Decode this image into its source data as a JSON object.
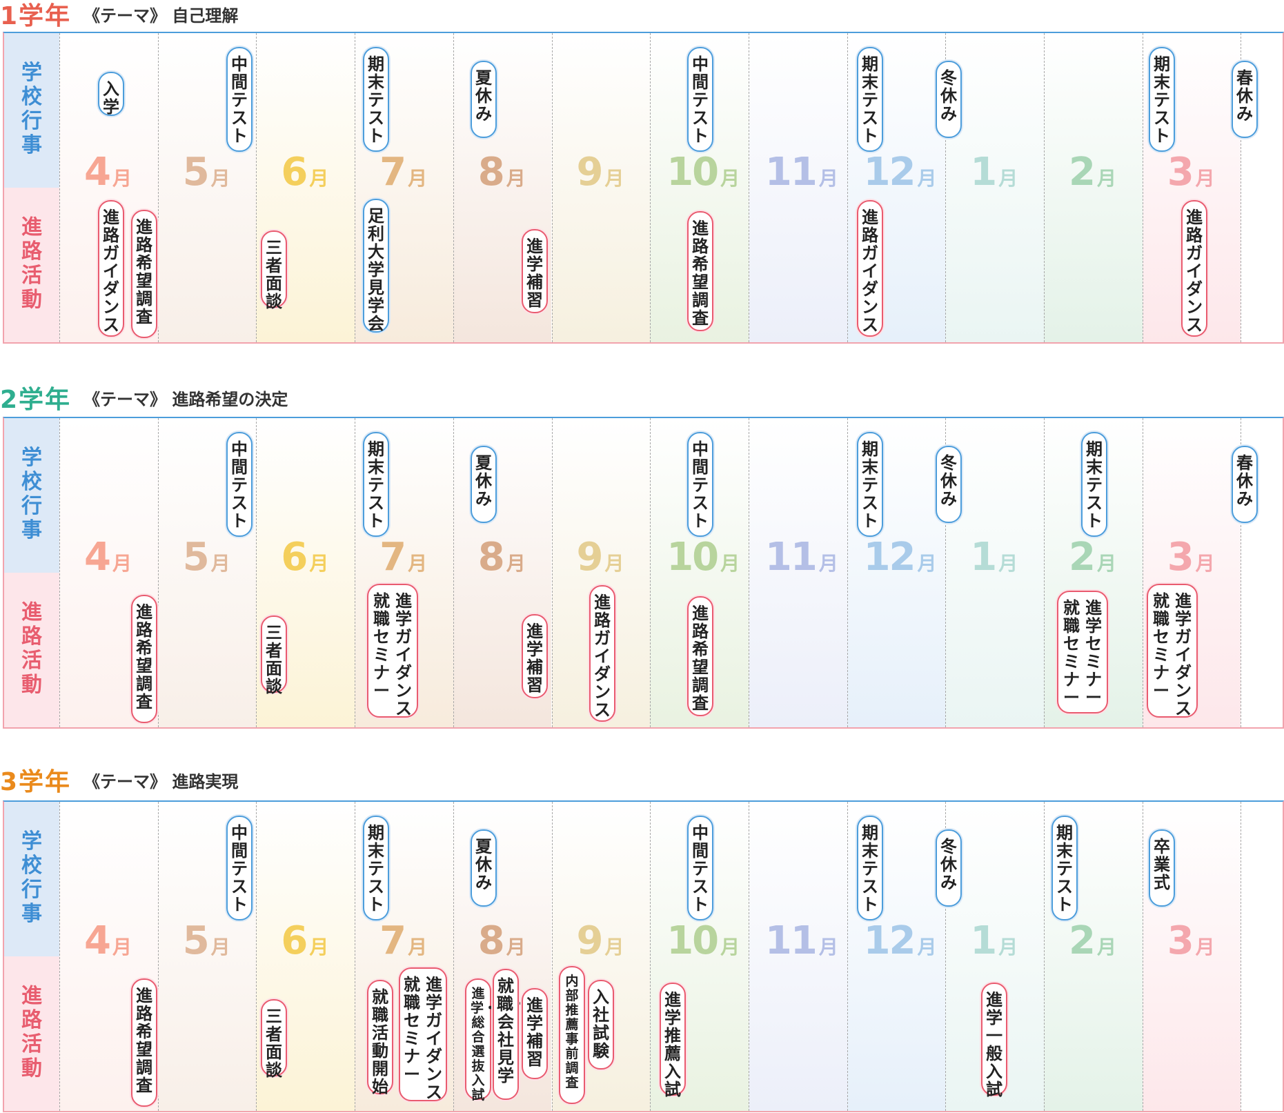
{
  "labels": {
    "school": "学校行事",
    "career": "進路活動"
  },
  "months": [
    {
      "num": "4",
      "unit": "月",
      "color": "#f7a693",
      "bg": "#fdf1ee"
    },
    {
      "num": "5",
      "unit": "月",
      "color": "#e0b99c",
      "bg": "#f8efe8"
    },
    {
      "num": "6",
      "unit": "月",
      "color": "#f4cf5c",
      "bg": "#fcf3d6"
    },
    {
      "num": "7",
      "unit": "月",
      "color": "#e3b681",
      "bg": "#f7ebdc"
    },
    {
      "num": "8",
      "unit": "月",
      "color": "#d9ab8a",
      "bg": "#f4e6dd"
    },
    {
      "num": "9",
      "unit": "月",
      "color": "#e5cf95",
      "bg": "#f6f0df"
    },
    {
      "num": "10",
      "unit": "月",
      "color": "#b8d49d",
      "bg": "#e9f2e1"
    },
    {
      "num": "11",
      "unit": "月",
      "color": "#b4bfe6",
      "bg": "#eceff9"
    },
    {
      "num": "12",
      "unit": "月",
      "color": "#a9cbea",
      "bg": "#e6f0fa"
    },
    {
      "num": "1",
      "unit": "月",
      "color": "#b5dcd6",
      "bg": "#eaf5f3"
    },
    {
      "num": "2",
      "unit": "月",
      "color": "#a9d6b6",
      "bg": "#e4f2e8"
    },
    {
      "num": "3",
      "unit": "月",
      "color": "#f4a7ad",
      "bg": "#fde7ea"
    }
  ],
  "years": [
    {
      "title": "1学年",
      "theme": "《テーマ》 自己理解",
      "events": [
        {
          "id": "y1-school-1",
          "type": "b",
          "cols": [
            "入学"
          ]
        },
        {
          "id": "y1-school-2",
          "type": "b",
          "cols": [
            "中間テスト"
          ]
        },
        {
          "id": "y1-school-3",
          "type": "b",
          "cols": [
            "期末テスト"
          ]
        },
        {
          "id": "y1-school-4",
          "type": "b",
          "cols": [
            "夏休み"
          ]
        },
        {
          "id": "y1-school-5",
          "type": "b",
          "cols": [
            "中間テスト"
          ]
        },
        {
          "id": "y1-school-6",
          "type": "b",
          "cols": [
            "期末テスト"
          ]
        },
        {
          "id": "y1-school-7",
          "type": "b",
          "cols": [
            "冬休み"
          ]
        },
        {
          "id": "y1-school-8",
          "type": "b",
          "cols": [
            "期末テスト"
          ]
        },
        {
          "id": "y1-school-9",
          "type": "b",
          "cols": [
            "春休み"
          ]
        },
        {
          "id": "y1-career-1",
          "type": "p",
          "cols": [
            "進路ガイダンス"
          ]
        },
        {
          "id": "y1-career-2",
          "type": "p",
          "cols": [
            "進路希望調査"
          ]
        },
        {
          "id": "y1-career-3",
          "type": "p",
          "cols": [
            "三者面談"
          ]
        },
        {
          "id": "y1-career-4",
          "type": "b",
          "cols": [
            "足利大学見学会"
          ]
        },
        {
          "id": "y1-career-5",
          "type": "p",
          "cols": [
            "進学補習"
          ]
        },
        {
          "id": "y1-career-6",
          "type": "p",
          "cols": [
            "進路希望調査"
          ]
        },
        {
          "id": "y1-career-7",
          "type": "p",
          "cols": [
            "進路ガイダンス"
          ]
        },
        {
          "id": "y1-career-8",
          "type": "p",
          "cols": [
            "進路ガイダンス"
          ]
        }
      ]
    },
    {
      "title": "2学年",
      "theme": "《テーマ》 進路希望の決定",
      "events": [
        {
          "id": "y2-school-1",
          "type": "b",
          "cols": [
            "中間テスト"
          ]
        },
        {
          "id": "y2-school-2",
          "type": "b",
          "cols": [
            "期末テスト"
          ]
        },
        {
          "id": "y2-school-3",
          "type": "b",
          "cols": [
            "夏休み"
          ]
        },
        {
          "id": "y2-school-4",
          "type": "b",
          "cols": [
            "中間テスト"
          ]
        },
        {
          "id": "y2-school-5",
          "type": "b",
          "cols": [
            "期末テスト"
          ]
        },
        {
          "id": "y2-school-6",
          "type": "b",
          "cols": [
            "冬休み"
          ]
        },
        {
          "id": "y2-school-7",
          "type": "b",
          "cols": [
            "期末テスト"
          ]
        },
        {
          "id": "y2-school-8",
          "type": "b",
          "cols": [
            "春休み"
          ]
        },
        {
          "id": "y2-career-1",
          "type": "p",
          "cols": [
            "進路希望調査"
          ]
        },
        {
          "id": "y2-career-2",
          "type": "p",
          "cols": [
            "三者面談"
          ]
        },
        {
          "id": "y2-career-3",
          "type": "p",
          "cols": [
            "進学ガイダンス",
            "就職セミナー"
          ]
        },
        {
          "id": "y2-career-4",
          "type": "p",
          "cols": [
            "進学補習"
          ]
        },
        {
          "id": "y2-career-5",
          "type": "p",
          "cols": [
            "進路ガイダンス"
          ]
        },
        {
          "id": "y2-career-6",
          "type": "p",
          "cols": [
            "進路希望調査"
          ]
        },
        {
          "id": "y2-career-7",
          "type": "p",
          "cols": [
            "進学セミナー",
            "就職セミナー"
          ]
        },
        {
          "id": "y2-career-8",
          "type": "p",
          "cols": [
            "進学ガイダンス",
            "就職セミナー"
          ]
        }
      ]
    },
    {
      "title": "3学年",
      "theme": "《テーマ》 進路実現",
      "events": [
        {
          "id": "y3-school-1",
          "type": "b",
          "cols": [
            "中間テスト"
          ]
        },
        {
          "id": "y3-school-2",
          "type": "b",
          "cols": [
            "期末テスト"
          ]
        },
        {
          "id": "y3-school-3",
          "type": "b",
          "cols": [
            "夏休み"
          ]
        },
        {
          "id": "y3-school-4",
          "type": "b",
          "cols": [
            "中間テスト"
          ]
        },
        {
          "id": "y3-school-5",
          "type": "b",
          "cols": [
            "期末テスト"
          ]
        },
        {
          "id": "y3-school-6",
          "type": "b",
          "cols": [
            "冬休み"
          ]
        },
        {
          "id": "y3-school-7",
          "type": "b",
          "cols": [
            "期末テスト"
          ]
        },
        {
          "id": "y3-school-8",
          "type": "b",
          "cols": [
            "卒業式"
          ]
        },
        {
          "id": "y3-career-1",
          "type": "p",
          "cols": [
            "進路希望調査"
          ]
        },
        {
          "id": "y3-career-2",
          "type": "p",
          "cols": [
            "三者面談"
          ]
        },
        {
          "id": "y3-career-3",
          "type": "p",
          "cols": [
            "就職活動開始"
          ]
        },
        {
          "id": "y3-career-4",
          "type": "p",
          "cols": [
            "進学ガイダンス",
            "就職セミナー"
          ]
        },
        {
          "id": "y3-career-5",
          "type": "p",
          "cols": [
            "進学・総合選抜入試"
          ]
        },
        {
          "id": "y3-career-6",
          "type": "p",
          "cols": [
            "就職・会社見学"
          ]
        },
        {
          "id": "y3-career-7",
          "type": "p",
          "cols": [
            "進学補習"
          ]
        },
        {
          "id": "y3-career-8",
          "type": "p",
          "cols": [
            "内部推薦事前調査"
          ]
        },
        {
          "id": "y3-career-9",
          "type": "p",
          "cols": [
            "入社試験"
          ]
        },
        {
          "id": "y3-career-10",
          "type": "p",
          "cols": [
            "進学 推薦入試"
          ]
        },
        {
          "id": "y3-career-11",
          "type": "p",
          "cols": [
            "進学 一般入試"
          ]
        }
      ]
    }
  ]
}
